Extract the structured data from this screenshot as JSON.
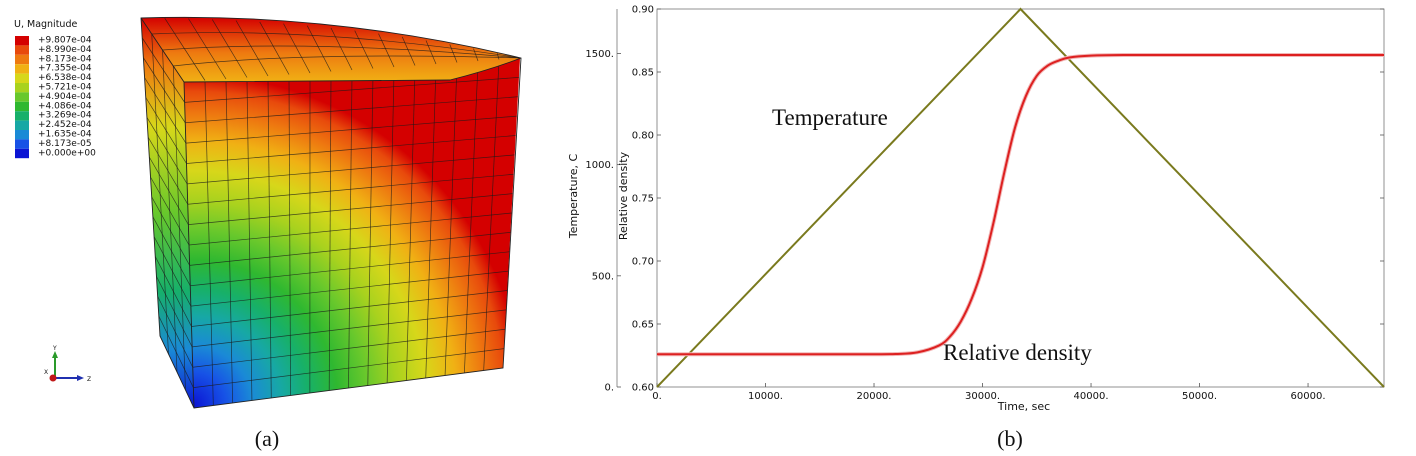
{
  "figure_a": {
    "legend": {
      "title": "U, Magnitude",
      "entries": [
        "+9.807e-04",
        "+8.990e-04",
        "+8.173e-04",
        "+7.355e-04",
        "+6.538e-04",
        "+5.721e-04",
        "+4.904e-04",
        "+4.086e-04",
        "+3.269e-04",
        "+2.452e-04",
        "+1.635e-04",
        "+8.173e-05",
        "+0.000e+00"
      ],
      "colors": [
        "#d40000",
        "#e84a0c",
        "#ee7a10",
        "#f0b114",
        "#d7d71a",
        "#a9d21e",
        "#68c82c",
        "#2fb830",
        "#17b06a",
        "#17a8a5",
        "#1a8ad6",
        "#1752e6",
        "#0b14d4"
      ]
    },
    "triad": {
      "y": "Y",
      "x": "X",
      "z": "Z"
    },
    "caption": "(a)"
  },
  "figure_b": {
    "caption": "(b)",
    "annotations": {
      "temperature": "Temperature",
      "density": "Relative density"
    },
    "colors": {
      "temperature": "#7a7a1e",
      "density": "#dd2020"
    }
  },
  "chart_data": {
    "type": "line",
    "title": "",
    "xlabel": "Time, sec",
    "ylabel_left": "Temperature, C",
    "ylabel_right": "Relative density",
    "xlim": [
      0,
      67000
    ],
    "ylim_left": [
      0,
      1700
    ],
    "ylim_right": [
      0.6,
      0.9
    ],
    "x_ticks": [
      0,
      10000,
      20000,
      30000,
      40000,
      50000,
      60000
    ],
    "x_tick_labels": [
      "0.",
      "10000.",
      "20000.",
      "30000.",
      "40000.",
      "50000.",
      "60000."
    ],
    "y_left_ticks": [
      0,
      500,
      1000,
      1500
    ],
    "y_left_tick_labels": [
      "0.",
      "500.",
      "1000.",
      "1500."
    ],
    "y_right_ticks": [
      0.6,
      0.65,
      0.7,
      0.75,
      0.8,
      0.85,
      0.9
    ],
    "y_right_tick_labels": [
      "0.60",
      "0.65",
      "0.70",
      "0.75",
      "0.80",
      "0.85",
      "0.90"
    ],
    "series": [
      {
        "name": "Temperature",
        "axis": "left",
        "x": [
          0,
          33500,
          67000
        ],
        "y": [
          0,
          1700,
          0
        ]
      },
      {
        "name": "Relative density",
        "axis": "right",
        "x": [
          0,
          5000,
          10000,
          15000,
          20000,
          22000,
          24000,
          26000,
          27000,
          28000,
          29000,
          30000,
          31000,
          32000,
          33000,
          34000,
          35000,
          36000,
          37000,
          38000,
          40000,
          43000,
          50000,
          60000,
          67000
        ],
        "y": [
          0.626,
          0.626,
          0.626,
          0.626,
          0.626,
          0.6262,
          0.6275,
          0.633,
          0.64,
          0.652,
          0.67,
          0.695,
          0.73,
          0.77,
          0.806,
          0.831,
          0.847,
          0.855,
          0.859,
          0.8615,
          0.863,
          0.8635,
          0.8635,
          0.8635,
          0.8635
        ]
      }
    ]
  }
}
